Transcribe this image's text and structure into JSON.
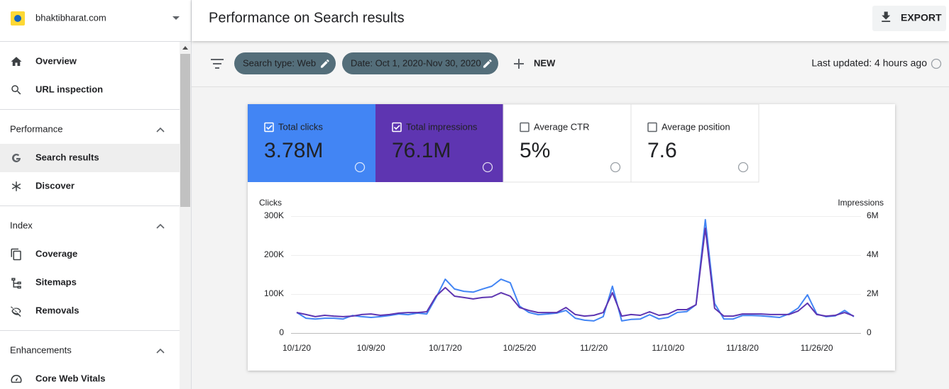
{
  "sidebar": {
    "property": "bhaktibharat.com",
    "top": [
      "Overview",
      "URL inspection"
    ],
    "sections": [
      {
        "title": "Performance",
        "items": [
          "Search results",
          "Discover"
        ]
      },
      {
        "title": "Index",
        "items": [
          "Coverage",
          "Sitemaps",
          "Removals"
        ]
      },
      {
        "title": "Enhancements",
        "items": [
          "Core Web Vitals"
        ]
      }
    ]
  },
  "header": {
    "title": "Performance on Search results",
    "export": "EXPORT"
  },
  "filters": {
    "chips": [
      "Search type: Web",
      "Date: Oct 1, 2020-Nov 30, 2020"
    ],
    "new": "NEW",
    "last_updated": "Last updated: 4 hours ago"
  },
  "metrics": [
    {
      "label": "Total clicks",
      "value": "3.78M",
      "checked": true,
      "color": "#4285f4"
    },
    {
      "label": "Total impressions",
      "value": "76.1M",
      "checked": true,
      "color": "#5e35b1"
    },
    {
      "label": "Average CTR",
      "value": "5%",
      "checked": false
    },
    {
      "label": "Average position",
      "value": "7.6",
      "checked": false
    }
  ],
  "chart_data": {
    "type": "line",
    "ylabel": "Clicks",
    "y2label": "Impressions",
    "categories": [
      "10/1/20",
      null,
      null,
      null,
      null,
      null,
      null,
      null,
      "10/9/20",
      null,
      null,
      null,
      null,
      null,
      null,
      null,
      "10/17/20",
      null,
      null,
      null,
      null,
      null,
      null,
      null,
      "10/25/20",
      null,
      null,
      null,
      null,
      null,
      null,
      null,
      "11/2/20",
      null,
      null,
      null,
      null,
      null,
      null,
      null,
      "11/10/20",
      null,
      null,
      null,
      null,
      null,
      null,
      null,
      "11/18/20",
      null,
      null,
      null,
      null,
      null,
      null,
      null,
      "11/26/20",
      null,
      null,
      null,
      null
    ],
    "series": [
      {
        "color": "#4285f4",
        "axis": "y",
        "values": [
          53000,
          38000,
          36000,
          38000,
          38000,
          36000,
          45000,
          42000,
          40000,
          42000,
          45000,
          49000,
          47000,
          51000,
          49000,
          91000,
          138000,
          113000,
          107000,
          105000,
          113000,
          120000,
          138000,
          129000,
          69000,
          53000,
          47000,
          49000,
          51000,
          58000,
          38000,
          33000,
          31000,
          42000,
          120000,
          31000,
          35000,
          36000,
          47000,
          36000,
          40000,
          53000,
          55000,
          73000,
          291000,
          76000,
          36000,
          36000,
          45000,
          45000,
          44000,
          42000,
          40000,
          49000,
          64000,
          98000,
          49000,
          42000,
          44000,
          58000,
          42000
        ]
      },
      {
        "color": "#5e35b1",
        "axis": "y2",
        "values": [
          1050000,
          950000,
          840000,
          910000,
          870000,
          840000,
          870000,
          950000,
          980000,
          910000,
          950000,
          1020000,
          1050000,
          1050000,
          1090000,
          1890000,
          2330000,
          1890000,
          1820000,
          1750000,
          1820000,
          1850000,
          2070000,
          1890000,
          1310000,
          1160000,
          1050000,
          1050000,
          1050000,
          1310000,
          950000,
          870000,
          910000,
          1050000,
          2070000,
          870000,
          950000,
          910000,
          1090000,
          910000,
          980000,
          1200000,
          1200000,
          1450000,
          5380000,
          1270000,
          870000,
          870000,
          980000,
          980000,
          980000,
          950000,
          950000,
          950000,
          1130000,
          1530000,
          950000,
          870000,
          910000,
          1050000,
          870000
        ]
      }
    ],
    "ylim": [
      0,
      300000
    ],
    "yticks": [
      0,
      {
        "value": 100000,
        "label": "100K"
      },
      {
        "value": 200000,
        "label": "200K"
      },
      {
        "value": 300000,
        "label": "300K"
      }
    ],
    "y2lim": [
      0,
      6000000
    ],
    "y2ticks": [
      0,
      {
        "value": 2000000,
        "label": "2M"
      },
      {
        "value": 4000000,
        "label": "4M"
      },
      {
        "value": 6000000,
        "label": "6M"
      }
    ],
    "grid": true
  }
}
